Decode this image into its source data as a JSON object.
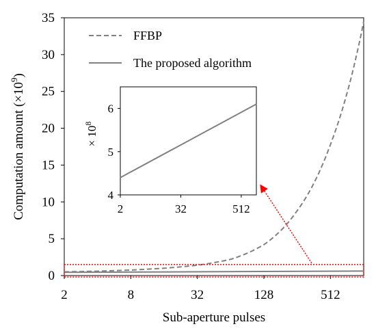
{
  "chart_data": {
    "type": "line",
    "xlabel": "Sub-aperture pulses",
    "ylabel": "Computation amount (×10",
    "ylabel_exp": "9",
    "ylabel_close": ")",
    "x_scale": "log2",
    "xlim": [
      2,
      1024
    ],
    "ylim": [
      0,
      35
    ],
    "x_ticks": [
      2,
      8,
      32,
      128,
      512
    ],
    "x_tick_labels": [
      "2",
      "8",
      "32",
      "128",
      "512"
    ],
    "y_ticks": [
      0,
      5,
      10,
      15,
      20,
      25,
      30,
      35
    ],
    "y_tick_labels": [
      "0",
      "5",
      "10",
      "15",
      "20",
      "25",
      "30",
      "35"
    ],
    "legend_position": "top-left",
    "series": [
      {
        "name": "FFBP",
        "style": "dashed",
        "color": "#808080",
        "x": [
          2,
          4,
          8,
          16,
          32,
          64,
          128,
          256,
          512,
          1024
        ],
        "y": [
          0.5,
          0.6,
          0.75,
          1.0,
          1.4,
          2.2,
          4.2,
          8.8,
          17.8,
          34.5
        ]
      },
      {
        "name": "The proposed algorithm",
        "style": "solid",
        "color": "#808080",
        "x": [
          2,
          1024
        ],
        "y": [
          0.44,
          0.61
        ]
      }
    ],
    "inset": {
      "ylabel_prefix": "×",
      "ylabel_base": "10",
      "ylabel_exp": "8",
      "ylim": [
        4,
        6.5
      ],
      "y_ticks": [
        4,
        5,
        6
      ],
      "y_tick_labels": [
        "4",
        "5",
        "6"
      ],
      "x_ticks": [
        2,
        32,
        512
      ],
      "x_tick_labels": [
        "2",
        "32",
        "512"
      ],
      "series": [
        {
          "name": "The proposed algorithm",
          "x": [
            2,
            1024
          ],
          "y": [
            4.4,
            6.1
          ]
        }
      ]
    },
    "annotation": {
      "highlight_y_range": [
        -0.2,
        1.5
      ],
      "color": "#ff0000"
    }
  }
}
